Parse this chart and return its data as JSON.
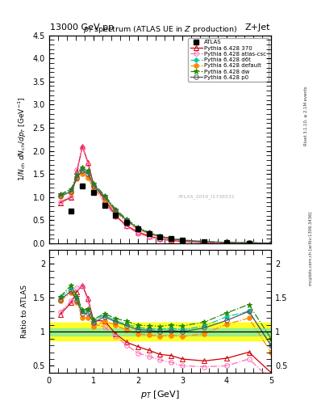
{
  "title_top": "13000 GeV pp",
  "title_right": "Z+Jet",
  "plot_title": "p_T  spectrum (ATLAS UE in Z production)",
  "ylabel_main": "1/N$_{ch}$ dN$_{ch}$/dp$_T$ [GeV$^{-1}$]",
  "ylabel_ratio": "Ratio to ATLAS",
  "xlabel": "p_T  [GeV]",
  "xlim": [
    0,
    5
  ],
  "ylim_main": [
    0,
    4.5
  ],
  "ylim_ratio": [
    0.4,
    2.2
  ],
  "watermark": "ATLAS_2019_I1736531",
  "right_label1": "Rivet 3.1.10, ≥ 2.1M events",
  "right_label2": "mcplots.cern.ch [arXiv:1306.3436]",
  "atlas_x": [
    0.5,
    0.75,
    1.0,
    1.25,
    1.5,
    1.75,
    2.0,
    2.25,
    2.5,
    2.75,
    3.0,
    3.5,
    4.0,
    4.5
  ],
  "atlas_y": [
    0.7,
    1.25,
    1.1,
    0.82,
    0.62,
    0.45,
    0.32,
    0.22,
    0.15,
    0.1,
    0.07,
    0.035,
    0.018,
    0.01
  ],
  "series": [
    {
      "label": "Pythia 6.428 370",
      "color": "#cc0000",
      "marker": "^",
      "markersize": 4,
      "filled": false,
      "linestyle": "-",
      "x": [
        0.25,
        0.5,
        0.625,
        0.75,
        0.875,
        1.0,
        1.25,
        1.5,
        1.75,
        2.0,
        2.25,
        2.5,
        2.75,
        3.0,
        3.5,
        4.0,
        4.5,
        5.0
      ],
      "y": [
        0.88,
        1.0,
        1.55,
        2.1,
        1.75,
        1.28,
        0.95,
        0.6,
        0.38,
        0.25,
        0.16,
        0.1,
        0.065,
        0.042,
        0.02,
        0.011,
        0.007,
        0.004
      ]
    },
    {
      "label": "Pythia 6.428 atlas-csc",
      "color": "#ff69b4",
      "marker": "o",
      "markersize": 4,
      "filled": false,
      "linestyle": "-.",
      "x": [
        0.25,
        0.5,
        0.625,
        0.75,
        0.875,
        1.0,
        1.25,
        1.5,
        1.75,
        2.0,
        2.25,
        2.5,
        2.75,
        3.0,
        3.5,
        4.0,
        4.5,
        5.0
      ],
      "y": [
        0.9,
        1.02,
        1.6,
        2.08,
        1.72,
        1.22,
        0.88,
        0.58,
        0.36,
        0.22,
        0.14,
        0.088,
        0.055,
        0.035,
        0.017,
        0.009,
        0.006,
        0.003
      ]
    },
    {
      "label": "Pythia 6.428 d6t",
      "color": "#00ccaa",
      "marker": "D",
      "markersize": 3,
      "filled": true,
      "linestyle": "-.",
      "x": [
        0.25,
        0.5,
        0.625,
        0.75,
        0.875,
        1.0,
        1.25,
        1.5,
        1.75,
        2.0,
        2.25,
        2.5,
        2.75,
        3.0,
        3.5,
        4.0,
        4.5,
        5.0
      ],
      "y": [
        1.05,
        1.15,
        1.45,
        1.62,
        1.55,
        1.28,
        1.02,
        0.72,
        0.5,
        0.34,
        0.23,
        0.155,
        0.105,
        0.072,
        0.038,
        0.022,
        0.013,
        0.008
      ]
    },
    {
      "label": "Pythia 6.428 default",
      "color": "#ff8800",
      "marker": "o",
      "markersize": 4,
      "filled": true,
      "linestyle": "-.",
      "x": [
        0.25,
        0.5,
        0.625,
        0.75,
        0.875,
        1.0,
        1.25,
        1.5,
        1.75,
        2.0,
        2.25,
        2.5,
        2.75,
        3.0,
        3.5,
        4.0,
        4.5,
        5.0
      ],
      "y": [
        1.02,
        1.1,
        1.4,
        1.5,
        1.42,
        1.18,
        0.95,
        0.68,
        0.46,
        0.31,
        0.21,
        0.14,
        0.095,
        0.065,
        0.034,
        0.02,
        0.012,
        0.007
      ]
    },
    {
      "label": "Pythia 6.428 dw",
      "color": "#228800",
      "marker": "*",
      "markersize": 5,
      "filled": true,
      "linestyle": "-.",
      "x": [
        0.25,
        0.5,
        0.625,
        0.75,
        0.875,
        1.0,
        1.25,
        1.5,
        1.75,
        2.0,
        2.25,
        2.5,
        2.75,
        3.0,
        3.5,
        4.0,
        4.5,
        5.0
      ],
      "y": [
        1.06,
        1.18,
        1.48,
        1.65,
        1.57,
        1.3,
        1.04,
        0.74,
        0.52,
        0.35,
        0.24,
        0.162,
        0.11,
        0.076,
        0.04,
        0.023,
        0.014,
        0.009
      ]
    },
    {
      "label": "Pythia 6.428 p0",
      "color": "#555555",
      "marker": "o",
      "markersize": 4,
      "filled": false,
      "linestyle": "-",
      "x": [
        0.25,
        0.5,
        0.625,
        0.75,
        0.875,
        1.0,
        1.25,
        1.5,
        1.75,
        2.0,
        2.25,
        2.5,
        2.75,
        3.0,
        3.5,
        4.0,
        4.5,
        5.0
      ],
      "y": [
        1.03,
        1.12,
        1.42,
        1.58,
        1.5,
        1.25,
        1.0,
        0.71,
        0.49,
        0.33,
        0.225,
        0.15,
        0.102,
        0.07,
        0.037,
        0.021,
        0.013,
        0.008
      ]
    }
  ],
  "band_yellow_lo": 0.87,
  "band_yellow_hi": 1.13,
  "band_green_lo": 0.95,
  "band_green_hi": 1.05
}
